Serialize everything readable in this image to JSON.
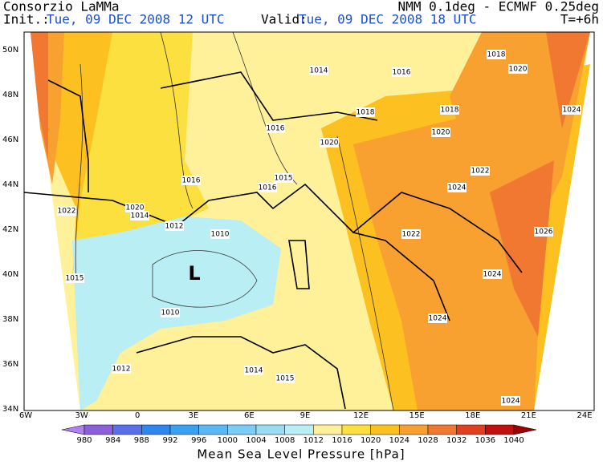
{
  "header": {
    "org": "Consorzio LaMMa",
    "model": "NMM 0.1deg - ECMWF 0.25deg",
    "init_label": "Init.:",
    "init": "Tue, 09 DEC 2008  12 UTC",
    "valid_label": "Valid:",
    "valid": "Tue, 09 DEC 2008  18 UTC",
    "lead": "T=+6h"
  },
  "map": {
    "lat_labels": [
      "50N",
      "48N",
      "46N",
      "44N",
      "42N",
      "40N",
      "38N",
      "36N",
      "34N"
    ],
    "lon_labels": [
      "6W",
      "3W",
      "0",
      "3E",
      "6E",
      "9E",
      "12E",
      "15E",
      "18E",
      "21E",
      "24E"
    ],
    "low_marker": "L",
    "contour_labels": [
      "1014",
      "1016",
      "1018",
      "1020",
      "1018",
      "1018",
      "1024",
      "1016",
      "1020",
      "1020",
      "1016",
      "1015",
      "1016",
      "1022",
      "1024",
      "1020",
      "1014",
      "1022",
      "1012",
      "1010",
      "1022",
      "1026",
      "1015",
      "1024",
      "1010",
      "1024",
      "1012",
      "1014",
      "1015",
      "1024"
    ]
  },
  "colorbar": {
    "levels": [
      980,
      984,
      988,
      992,
      996,
      1000,
      1004,
      1008,
      1012,
      1016,
      1020,
      1024,
      1028,
      1032,
      1036,
      1040
    ],
    "colors": [
      "#8a5fd8",
      "#5a70e8",
      "#2e86ee",
      "#3aa0f0",
      "#5ab8f4",
      "#7acef6",
      "#9adcf2",
      "#b8eef4",
      "#fff09a",
      "#fce040",
      "#fcc020",
      "#f8a030",
      "#f07830",
      "#e04020",
      "#c01010"
    ],
    "under_color": "#b080f0",
    "over_color": "#a00000",
    "title": "Mean Sea Level Pressure [hPa]"
  }
}
